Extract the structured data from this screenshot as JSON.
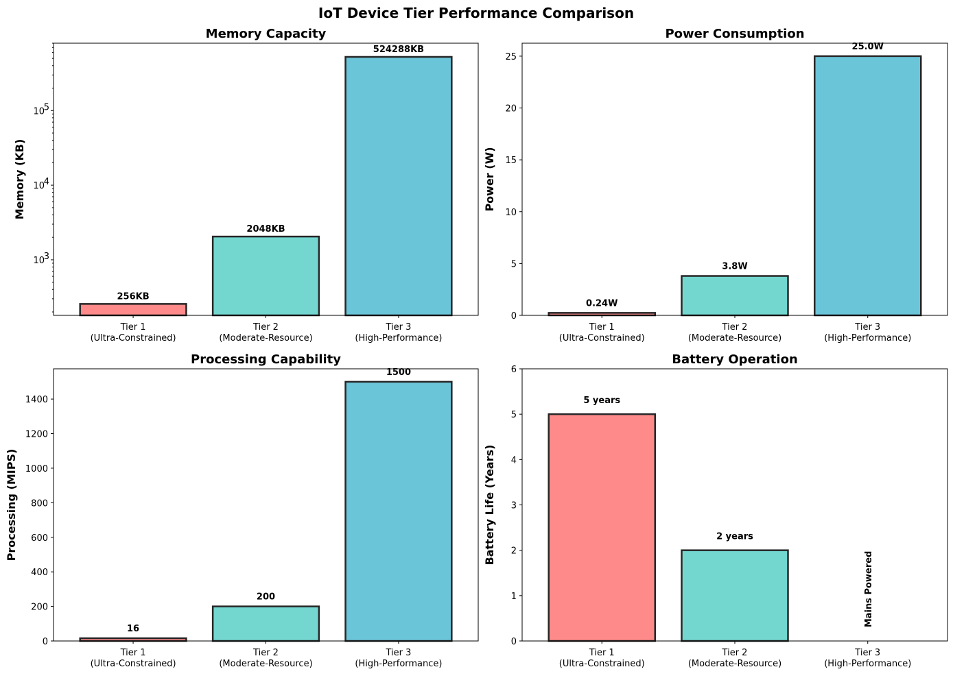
{
  "title": "IoT Device Tier Performance Comparison",
  "chart_data": [
    {
      "type": "bar",
      "title": "Memory Capacity",
      "ylabel": "Memory (KB)",
      "yscale": "log",
      "ylim": [
        180,
        800000
      ],
      "categories": [
        "Tier 1\n(Ultra-Constrained)",
        "Tier 2\n(Moderate-Resource)",
        "Tier 3\n(High-Performance)"
      ],
      "values": [
        256,
        2048,
        524288
      ],
      "value_labels": [
        "256KB",
        "2048KB",
        "524288KB"
      ],
      "colors": [
        "#ff8a8a",
        "#73d7cf",
        "#6bc5d9"
      ],
      "major_ticks": [
        1000,
        10000,
        100000
      ],
      "major_tick_labels": [
        [
          "10",
          "3"
        ],
        [
          "10",
          "4"
        ],
        [
          "10",
          "5"
        ]
      ]
    },
    {
      "type": "bar",
      "title": "Power Consumption",
      "ylabel": "Power (W)",
      "ylim": [
        0,
        26.25
      ],
      "categories": [
        "Tier 1\n(Ultra-Constrained)",
        "Tier 2\n(Moderate-Resource)",
        "Tier 3\n(High-Performance)"
      ],
      "values": [
        0.24,
        3.8,
        25.0
      ],
      "value_labels": [
        "0.24W",
        "3.8W",
        "25.0W"
      ],
      "colors": [
        "#ff8a8a",
        "#73d7cf",
        "#6bc5d9"
      ],
      "ticks": [
        0,
        5,
        10,
        15,
        20,
        25
      ],
      "tick_labels": [
        "0",
        "5",
        "10",
        "15",
        "20",
        "25"
      ]
    },
    {
      "type": "bar",
      "title": "Processing Capability",
      "ylabel": "Processing (MIPS)",
      "ylim": [
        0,
        1575
      ],
      "categories": [
        "Tier 1\n(Ultra-Constrained)",
        "Tier 2\n(Moderate-Resource)",
        "Tier 3\n(High-Performance)"
      ],
      "values": [
        16,
        200,
        1500
      ],
      "value_labels": [
        "16",
        "200",
        "1500"
      ],
      "colors": [
        "#ff8a8a",
        "#73d7cf",
        "#6bc5d9"
      ],
      "ticks": [
        0,
        200,
        400,
        600,
        800,
        1000,
        1200,
        1400
      ],
      "tick_labels": [
        "0",
        "200",
        "400",
        "600",
        "800",
        "1000",
        "1200",
        "1400"
      ]
    },
    {
      "type": "bar",
      "title": "Battery Operation",
      "ylabel": "Battery Life (Years)",
      "ylim": [
        0,
        6
      ],
      "categories": [
        "Tier 1\n(Ultra-Constrained)",
        "Tier 2\n(Moderate-Resource)",
        "Tier 3\n(High-Performance)"
      ],
      "values": [
        5,
        2,
        0
      ],
      "value_labels": [
        "5 years",
        "2 years",
        "Mains Powered"
      ],
      "rotated_labels": [
        false,
        false,
        true
      ],
      "colors": [
        "#ff8a8a",
        "#73d7cf",
        "#6bc5d9"
      ],
      "ticks": [
        0,
        1,
        2,
        3,
        4,
        5,
        6
      ],
      "tick_labels": [
        "0",
        "1",
        "2",
        "3",
        "4",
        "5",
        "6"
      ]
    }
  ]
}
